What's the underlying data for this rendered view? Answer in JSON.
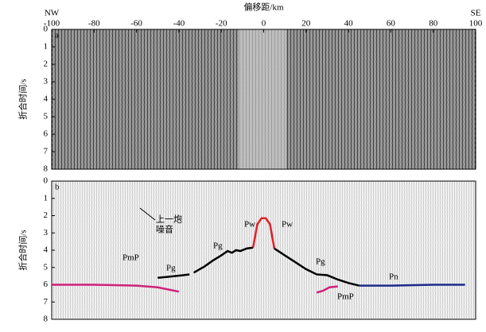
{
  "chart_data": [
    {
      "type": "line",
      "panel_label": "a",
      "xlabel": "偏移距/km",
      "left_label": "NW",
      "right_label": "SE",
      "ylabel": "折合时间/s",
      "xlim": [
        -100,
        100
      ],
      "xticks": [
        -100,
        -80,
        -60,
        -40,
        -20,
        0,
        20,
        40,
        60,
        80,
        100
      ],
      "ylim": [
        0,
        8
      ],
      "yticks": [
        0,
        1,
        2,
        3,
        4,
        5,
        6,
        7,
        8
      ],
      "series": []
    },
    {
      "type": "line",
      "panel_label": "b",
      "ylabel": "折合时间/s",
      "xlim": [
        -100,
        100
      ],
      "ylim": [
        0,
        8
      ],
      "yticks": [
        0,
        1,
        2,
        3,
        4,
        5,
        6,
        7,
        8
      ],
      "series": [
        {
          "color": "#000000",
          "x": [
            -50,
            -46,
            -42,
            -38,
            -35
          ],
          "values": [
            5.6,
            5.55,
            5.5,
            5.45,
            5.4
          ]
        },
        {
          "color": "#000000",
          "x": [
            -33,
            -28,
            -24,
            -20,
            -17,
            -15,
            -13,
            -11,
            -8,
            -5
          ],
          "values": [
            5.3,
            4.95,
            4.6,
            4.3,
            4.05,
            4.15,
            4.0,
            4.05,
            3.9,
            3.85
          ]
        },
        {
          "color": "#e0202a",
          "x": [
            -5,
            -3,
            -1,
            1,
            3,
            5
          ],
          "values": [
            3.85,
            2.5,
            2.15,
            2.15,
            2.5,
            3.9
          ]
        },
        {
          "color": "#000000",
          "x": [
            5,
            10,
            15,
            20,
            25,
            30,
            35,
            40,
            45
          ],
          "values": [
            3.9,
            4.3,
            4.7,
            5.1,
            5.4,
            5.45,
            5.7,
            5.9,
            6.05
          ]
        },
        {
          "color": "#1c2a8c",
          "x": [
            45,
            60,
            80,
            95
          ],
          "values": [
            6.05,
            6.05,
            6.0,
            6.0
          ]
        },
        {
          "color": "#d0207a",
          "x": [
            -100,
            -80,
            -60,
            -50,
            -40
          ],
          "values": [
            6.0,
            6.0,
            6.05,
            6.15,
            6.4
          ]
        },
        {
          "color": "#d0207a",
          "x": [
            25,
            28,
            31,
            35
          ],
          "values": [
            6.45,
            6.35,
            6.15,
            6.1
          ]
        }
      ],
      "annotations": [
        "上一炮",
        "噪音",
        "Pw",
        "Pw",
        "Pg",
        "Pg",
        "Pg",
        "Pn",
        "PmP",
        "PmP"
      ]
    }
  ]
}
